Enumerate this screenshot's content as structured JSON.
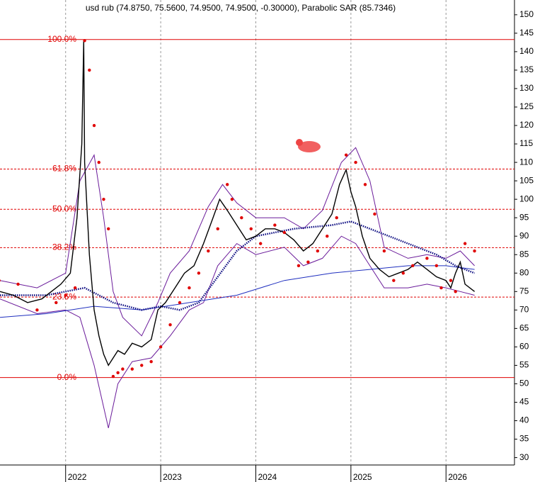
{
  "chart_data": {
    "type": "line",
    "title": "usd rub (74.8750, 75.5600, 74.9500, 74.9500, -0.30000), Parabolic SAR (85.7346)",
    "xlim": [
      2021.31,
      2026.72
    ],
    "xticks": [
      2022,
      2023,
      2024,
      2025,
      2026
    ],
    "ylim": [
      28,
      154
    ],
    "yticks": [
      30,
      35,
      40,
      45,
      50,
      55,
      60,
      65,
      70,
      75,
      80,
      85,
      90,
      95,
      100,
      105,
      110,
      115,
      120,
      125,
      130,
      135,
      140,
      145,
      150
    ],
    "grid": true,
    "fib_levels": [
      {
        "label": "100.0%",
        "value": 143.3,
        "dashed": false
      },
      {
        "label": "61.8%",
        "value": 108.2,
        "dashed": true
      },
      {
        "label": "50.0%",
        "value": 97.3,
        "dashed": true
      },
      {
        "label": "38.2%",
        "value": 86.9,
        "dashed": true
      },
      {
        "label": "23.6%",
        "value": 73.5,
        "dashed": true
      },
      {
        "label": "0.0%",
        "value": 51.7,
        "dashed": false
      }
    ],
    "series": [
      {
        "color": "#6a1b9a",
        "style": "line",
        "width": 1,
        "x": [
          2021.31,
          2021.7,
          2022.0,
          2022.15,
          2022.3,
          2022.4,
          2022.5,
          2022.6,
          2022.8,
          2022.97,
          2023.1,
          2023.3,
          2023.5,
          2023.65,
          2023.8,
          2024.0,
          2024.3,
          2024.5,
          2024.7,
          2024.9,
          2025.05,
          2025.2,
          2025.35,
          2025.6,
          2025.8,
          2026.0,
          2026.15,
          2026.3
        ],
        "values": [
          78,
          76,
          80,
          105,
          112,
          95,
          75,
          68,
          63,
          72,
          80,
          86,
          98,
          104,
          99,
          95,
          95,
          92,
          97,
          110,
          114,
          105,
          87,
          84,
          85,
          84,
          86,
          82
        ]
      },
      {
        "color": "#6a1b9a",
        "style": "line",
        "width": 1,
        "x": [
          2021.31,
          2021.7,
          2022.0,
          2022.15,
          2022.3,
          2022.45,
          2022.55,
          2022.7,
          2022.9,
          2023.1,
          2023.3,
          2023.45,
          2023.6,
          2023.8,
          2024.0,
          2024.3,
          2024.5,
          2024.7,
          2024.9,
          2025.05,
          2025.2,
          2025.35,
          2025.6,
          2025.8,
          2026.0,
          2026.15,
          2026.3
        ],
        "values": [
          73,
          69,
          70,
          68,
          55,
          38,
          50,
          56,
          57,
          63,
          70,
          72,
          82,
          88,
          85,
          87,
          82,
          84,
          90,
          88,
          82,
          76,
          76,
          77,
          76,
          75,
          74
        ]
      },
      {
        "color": "#1f2fbf",
        "style": "line",
        "width": 1,
        "x": [
          2021.31,
          2021.8,
          2022.3,
          2022.8,
          2023.3,
          2023.8,
          2024.3,
          2024.8,
          2025.2,
          2025.6,
          2026.0,
          2026.3
        ],
        "values": [
          68,
          69,
          71,
          70,
          72,
          74,
          78,
          80,
          81,
          82,
          82,
          81
        ]
      },
      {
        "color": "#0a0a80",
        "style": "dotted",
        "width": 2.5,
        "x": [
          2021.31,
          2021.8,
          2022.2,
          2022.5,
          2022.8,
          2023.0,
          2023.2,
          2023.4,
          2023.6,
          2023.8,
          2024.0,
          2024.4,
          2024.8,
          2025.0,
          2025.3,
          2025.6,
          2025.9,
          2026.1,
          2026.3
        ],
        "values": [
          74,
          74,
          76,
          72,
          70,
          71,
          70,
          72,
          79,
          86,
          90,
          92,
          93,
          94,
          91,
          88,
          85,
          82,
          80
        ]
      },
      {
        "color": "#000000",
        "style": "line",
        "width": 1.4,
        "x": [
          2021.31,
          2021.45,
          2021.6,
          2021.75,
          2021.85,
          2021.95,
          2022.05,
          2022.12,
          2022.17,
          2022.19,
          2022.2,
          2022.25,
          2022.3,
          2022.35,
          2022.4,
          2022.45,
          2022.5,
          2022.55,
          2022.62,
          2022.7,
          2022.8,
          2022.9,
          2022.97,
          2023.05,
          2023.15,
          2023.25,
          2023.35,
          2023.45,
          2023.55,
          2023.62,
          2023.7,
          2023.8,
          2023.9,
          2024.0,
          2024.1,
          2024.2,
          2024.3,
          2024.4,
          2024.5,
          2024.6,
          2024.7,
          2024.8,
          2024.88,
          2024.95,
          2025.0,
          2025.05,
          2025.12,
          2025.2,
          2025.3,
          2025.4,
          2025.5,
          2025.6,
          2025.7,
          2025.8,
          2025.9,
          2026.0,
          2026.05,
          2026.1,
          2026.15,
          2026.2,
          2026.3
        ],
        "values": [
          75,
          74,
          72,
          73,
          75,
          77,
          80,
          95,
          115,
          143,
          110,
          85,
          70,
          63,
          58,
          55,
          57,
          59,
          58,
          61,
          60,
          62,
          70,
          72,
          76,
          80,
          82,
          88,
          95,
          100,
          97,
          93,
          89,
          90,
          92,
          92,
          91,
          89,
          86,
          88,
          92,
          96,
          104,
          108,
          102,
          98,
          90,
          84,
          81,
          79,
          80,
          81,
          83,
          81,
          79,
          78,
          76,
          80,
          83,
          77,
          75
        ]
      },
      {
        "color": "#e00000",
        "style": "dots",
        "width": 2.2,
        "x": [
          2021.3,
          2021.5,
          2021.7,
          2021.9,
          2022.0,
          2022.1,
          2022.2,
          2022.25,
          2022.3,
          2022.35,
          2022.4,
          2022.45,
          2022.5,
          2022.55,
          2022.6,
          2022.7,
          2022.8,
          2022.9,
          2023.0,
          2023.1,
          2023.2,
          2023.3,
          2023.4,
          2023.5,
          2023.6,
          2023.7,
          2023.75,
          2023.85,
          2023.95,
          2024.05,
          2024.2,
          2024.3,
          2024.45,
          2024.55,
          2024.65,
          2024.75,
          2024.85,
          2024.95,
          2025.05,
          2025.15,
          2025.25,
          2025.35,
          2025.45,
          2025.55,
          2025.65,
          2025.8,
          2025.9,
          2025.95,
          2026.05,
          2026.1,
          2026.2,
          2026.3
        ],
        "values": [
          78,
          77,
          70,
          72,
          74,
          76,
          143,
          135,
          120,
          110,
          100,
          92,
          52,
          53,
          54,
          54,
          55,
          56,
          60,
          66,
          72,
          76,
          80,
          86,
          92,
          104,
          100,
          95,
          92,
          88,
          93,
          91,
          82,
          83,
          86,
          90,
          95,
          112,
          110,
          104,
          96,
          86,
          78,
          80,
          82,
          84,
          82,
          76,
          78,
          75,
          88,
          86
        ]
      }
    ]
  }
}
